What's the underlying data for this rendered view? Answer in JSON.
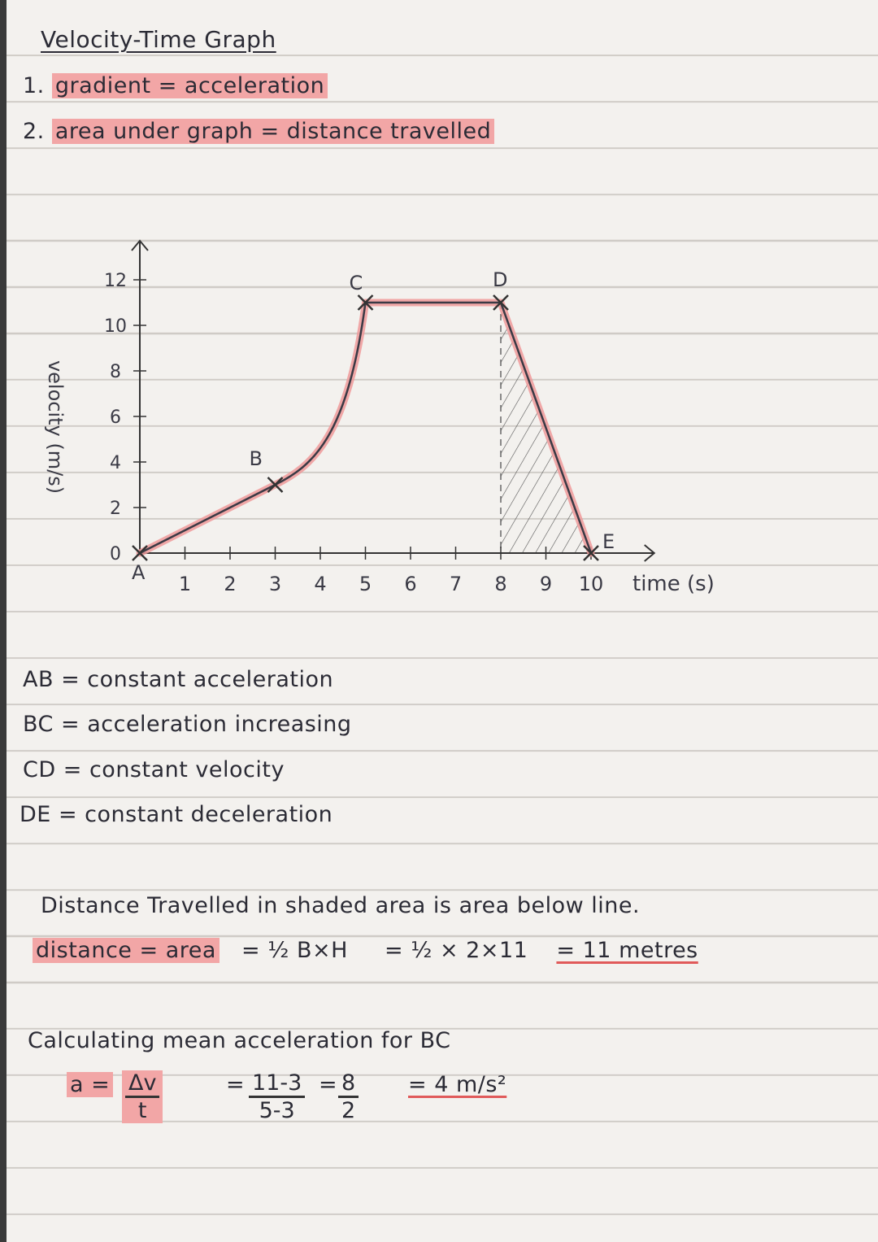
{
  "page": {
    "title": "Velocity-Time Graph",
    "rules": [
      {
        "num": "1.",
        "left": "gradient",
        "right": "= acceleration"
      },
      {
        "num": "2.",
        "left": "area under graph",
        "right": "= distance travelled"
      }
    ]
  },
  "chart_data": {
    "type": "line",
    "xlabel": "time (s)",
    "ylabel": "velocity (m/s)",
    "x_ticks": [
      "1",
      "2",
      "3",
      "4",
      "5",
      "6",
      "7",
      "8",
      "9",
      "10"
    ],
    "y_ticks": [
      "0",
      "2",
      "4",
      "6",
      "8",
      "10",
      "12"
    ],
    "xlim": [
      0,
      10.5
    ],
    "ylim": [
      0,
      13
    ],
    "points": [
      {
        "label": "A",
        "x": 0,
        "y": 0
      },
      {
        "label": "B",
        "x": 3,
        "y": 3
      },
      {
        "label": "C",
        "x": 5,
        "y": 11
      },
      {
        "label": "D",
        "x": 8,
        "y": 11
      },
      {
        "label": "E",
        "x": 10,
        "y": 0
      }
    ],
    "shaded_region": {
      "from_x": 8,
      "to_x": 10
    }
  },
  "descriptions": [
    {
      "seg": "AB",
      "text": "= constant acceleration"
    },
    {
      "seg": "BC",
      "text": "= acceleration increasing"
    },
    {
      "seg": "CD",
      "text": "= constant velocity"
    },
    {
      "seg": "DE",
      "text": "= constant deceleration"
    }
  ],
  "distance": {
    "statement": "Distance Travelled in shaded area is area below line.",
    "label": "distance = area",
    "formula": "= ½ B×H",
    "calc": "= ½ × 2×11",
    "result": "= 11 metres"
  },
  "mean_acc": {
    "heading": "Calculating mean acceleration for BC",
    "a_label": "a =",
    "dv": "Δv",
    "t": "t",
    "eq1": "=",
    "num1": "11-3",
    "den1": "5-3",
    "eq2": "=",
    "num2": "8",
    "den2": "2",
    "result": "= 4 m/s²"
  }
}
